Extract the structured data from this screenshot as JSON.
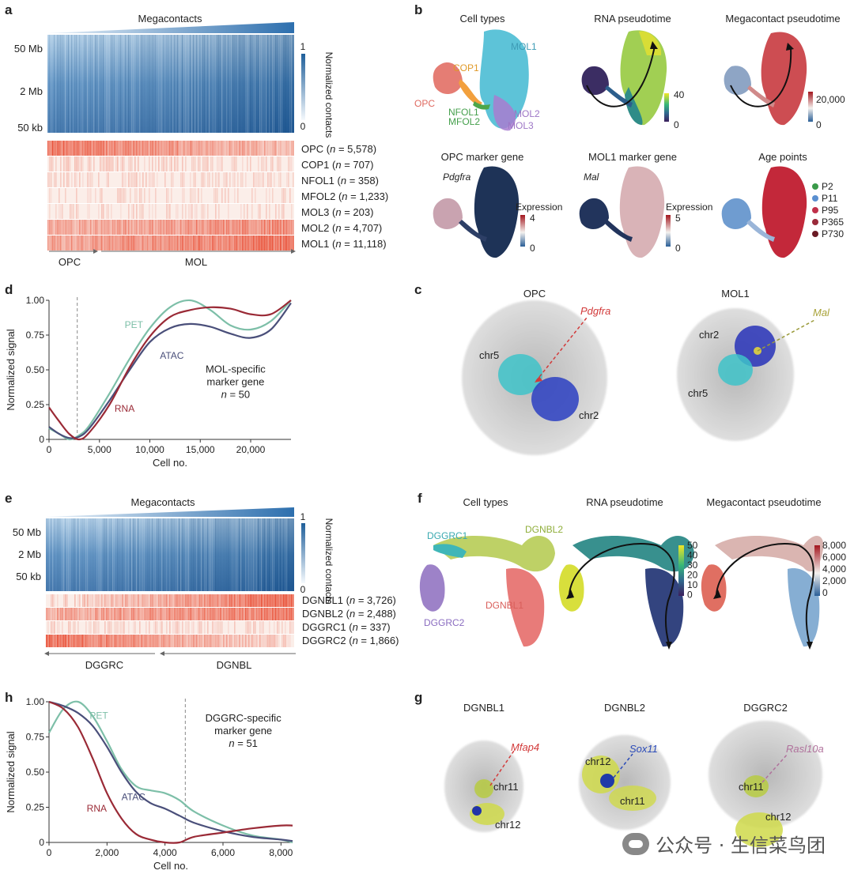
{
  "panels": {
    "a": {
      "label": "a",
      "header": "Megacontacts",
      "y_ticks": [
        "50 Mb",
        "2 Mb",
        "50 kb"
      ],
      "colorbar": {
        "title": "Normalized contacts",
        "max": "1",
        "min": "0"
      },
      "rows": [
        {
          "name": "OPC",
          "n": "5,578"
        },
        {
          "name": "COP1",
          "n": "707"
        },
        {
          "name": "NFOL1",
          "n": "358"
        },
        {
          "name": "MFOL2",
          "n": "1,233"
        },
        {
          "name": "MOL3",
          "n": "203"
        },
        {
          "name": "MOL2",
          "n": "4,707"
        },
        {
          "name": "MOL1",
          "n": "11,118"
        }
      ],
      "arrows": {
        "left": "OPC",
        "right": "MOL"
      }
    },
    "b": {
      "label": "b",
      "titles": [
        "Cell types",
        "RNA pseudotime",
        "Megacontact pseudotime",
        "OPC marker gene",
        "MOL1 marker gene",
        "Age points"
      ],
      "cell_labels": [
        "MOL1",
        "COP1",
        "OPC",
        "NFOL1",
        "MFOL2",
        "MOL2",
        "MOL3"
      ],
      "rna_bar": {
        "max": "40",
        "min": "0"
      },
      "mega_bar": {
        "max": "20,000",
        "min": "0"
      },
      "opc_gene": "Pdgfra",
      "mol_gene": "Mal",
      "expr_label": "Expression",
      "opc_bar": {
        "max": "4",
        "min": "0"
      },
      "mol_bar": {
        "max": "5",
        "min": "0"
      },
      "ages": [
        {
          "name": "P2",
          "color": "#3a9a4a"
        },
        {
          "name": "P11",
          "color": "#5a8fd0"
        },
        {
          "name": "P95",
          "color": "#c0304a"
        },
        {
          "name": "P365",
          "color": "#9a2a3a"
        },
        {
          "name": "P730",
          "color": "#6a1a24"
        }
      ]
    },
    "c": {
      "label": "c",
      "left_title": "OPC",
      "right_title": "MOL1",
      "left_gene": "Pdgfra",
      "right_gene": "Mal",
      "left_chrs": [
        "chr5",
        "chr2"
      ],
      "right_chrs": [
        "chr2",
        "chr5"
      ]
    },
    "e": {
      "label": "e",
      "header": "Megacontacts",
      "y_ticks": [
        "50 Mb",
        "2 Mb",
        "50 kb"
      ],
      "colorbar": {
        "title": "Normalized contacts",
        "max": "1",
        "min": "0"
      },
      "rows": [
        {
          "name": "DGNBL1",
          "n": "3,726"
        },
        {
          "name": "DGNBL2",
          "n": "2,488"
        },
        {
          "name": "DGGRC1",
          "n": "337"
        },
        {
          "name": "DGGRC2",
          "n": "1,866"
        }
      ],
      "arrows": {
        "left": "DGGRC",
        "right": "DGNBL"
      }
    },
    "f": {
      "label": "f",
      "titles": [
        "Cell types",
        "RNA pseudotime",
        "Megacontact pseudotime"
      ],
      "cell_labels": [
        "DGGRC1",
        "DGNBL2",
        "DGGRC2",
        "DGNBL1"
      ],
      "rna_ticks": [
        "50",
        "40",
        "30",
        "20",
        "10",
        "0"
      ],
      "mega_ticks": [
        "8,000",
        "6,000",
        "4,000",
        "2,000",
        "0"
      ]
    },
    "g": {
      "label": "g",
      "titles": [
        "DGNBL1",
        "DGNBL2",
        "DGGRC2"
      ],
      "genes": [
        "Mfap4",
        "Sox11",
        "Rasl10a"
      ],
      "chrs": [
        [
          "chr11",
          "chr12"
        ],
        [
          "chr12",
          "chr11"
        ],
        [
          "chr11",
          "chr12"
        ]
      ]
    }
  },
  "chart_data": [
    {
      "panel": "d",
      "label": "d",
      "type": "line",
      "xlabel": "Cell no.",
      "ylabel": "Normalized signal",
      "xlim": [
        0,
        24000
      ],
      "ylim": [
        0,
        1.0
      ],
      "x_ticks": [
        0,
        5000,
        10000,
        15000,
        20000
      ],
      "x_tick_labels": [
        "0",
        "5,000",
        "10,000",
        "15,000",
        "20,000"
      ],
      "y_ticks": [
        0,
        0.25,
        0.5,
        0.75,
        1.0
      ],
      "y_tick_labels": [
        "0",
        "0.25",
        "0.50",
        "0.75",
        "1.00"
      ],
      "vline": 2800,
      "annotation": [
        "MOL-specific",
        "marker gene",
        "n = 50"
      ],
      "series": [
        {
          "name": "PET",
          "color": "#7dbfa8",
          "x": [
            0,
            1000,
            2000,
            3000,
            4000,
            6000,
            8000,
            10000,
            12000,
            14000,
            16000,
            18000,
            20000,
            22000,
            24000
          ],
          "y": [
            0.08,
            0.04,
            0.0,
            0.03,
            0.1,
            0.33,
            0.58,
            0.8,
            0.95,
            1.0,
            0.93,
            0.82,
            0.79,
            0.85,
            1.0
          ]
        },
        {
          "name": "ATAC",
          "color": "#4a4f7a",
          "x": [
            0,
            1000,
            2000,
            3000,
            4000,
            6000,
            8000,
            10000,
            12000,
            14000,
            16000,
            18000,
            20000,
            22000,
            24000
          ],
          "y": [
            0.09,
            0.04,
            0.01,
            0.02,
            0.08,
            0.28,
            0.5,
            0.7,
            0.8,
            0.83,
            0.81,
            0.76,
            0.73,
            0.79,
            0.98
          ]
        },
        {
          "name": "RNA",
          "color": "#9a2a36",
          "x": [
            0,
            1000,
            2000,
            3000,
            4000,
            6000,
            8000,
            10000,
            12000,
            14000,
            16000,
            18000,
            20000,
            22000,
            24000
          ],
          "y": [
            0.23,
            0.13,
            0.04,
            0.0,
            0.05,
            0.25,
            0.52,
            0.74,
            0.88,
            0.93,
            0.95,
            0.94,
            0.9,
            0.9,
            1.0
          ]
        }
      ]
    },
    {
      "panel": "h",
      "label": "h",
      "type": "line",
      "xlabel": "Cell no.",
      "ylabel": "Normalized signal",
      "xlim": [
        0,
        8400
      ],
      "ylim": [
        0,
        1.0
      ],
      "x_ticks": [
        0,
        2000,
        4000,
        6000,
        8000
      ],
      "x_tick_labels": [
        "0",
        "2,000",
        "4,000",
        "6,000",
        "8,000"
      ],
      "y_ticks": [
        0,
        0.25,
        0.5,
        0.75,
        1.0
      ],
      "y_tick_labels": [
        "0",
        "0.25",
        "0.50",
        "0.75",
        "1.00"
      ],
      "vline": 4700,
      "annotation": [
        "DGGRC-specific",
        "marker gene",
        "n = 51"
      ],
      "series": [
        {
          "name": "PET",
          "color": "#7dbfa8",
          "x": [
            0,
            500,
            1000,
            1500,
            2000,
            2500,
            3000,
            3500,
            4000,
            4500,
            5000,
            6000,
            7000,
            8000,
            8400
          ],
          "y": [
            0.78,
            0.95,
            1.0,
            0.9,
            0.72,
            0.52,
            0.4,
            0.37,
            0.35,
            0.3,
            0.22,
            0.12,
            0.05,
            0.02,
            0.0
          ]
        },
        {
          "name": "ATAC",
          "color": "#4a4f7a",
          "x": [
            0,
            500,
            1000,
            1500,
            2000,
            2500,
            3000,
            3500,
            4000,
            4500,
            5000,
            6000,
            7000,
            8000,
            8400
          ],
          "y": [
            1.0,
            0.97,
            0.92,
            0.83,
            0.68,
            0.5,
            0.36,
            0.28,
            0.24,
            0.19,
            0.14,
            0.08,
            0.04,
            0.02,
            0.01
          ]
        },
        {
          "name": "RNA",
          "color": "#9a2a36",
          "x": [
            0,
            500,
            1000,
            1500,
            2000,
            2500,
            3000,
            3500,
            4000,
            4500,
            5000,
            6000,
            7000,
            8000,
            8400
          ],
          "y": [
            1.0,
            0.95,
            0.82,
            0.6,
            0.35,
            0.17,
            0.06,
            0.02,
            0.0,
            0.0,
            0.04,
            0.07,
            0.1,
            0.12,
            0.12
          ]
        }
      ]
    }
  ],
  "watermark": "公众号 · 生信菜鸟团"
}
